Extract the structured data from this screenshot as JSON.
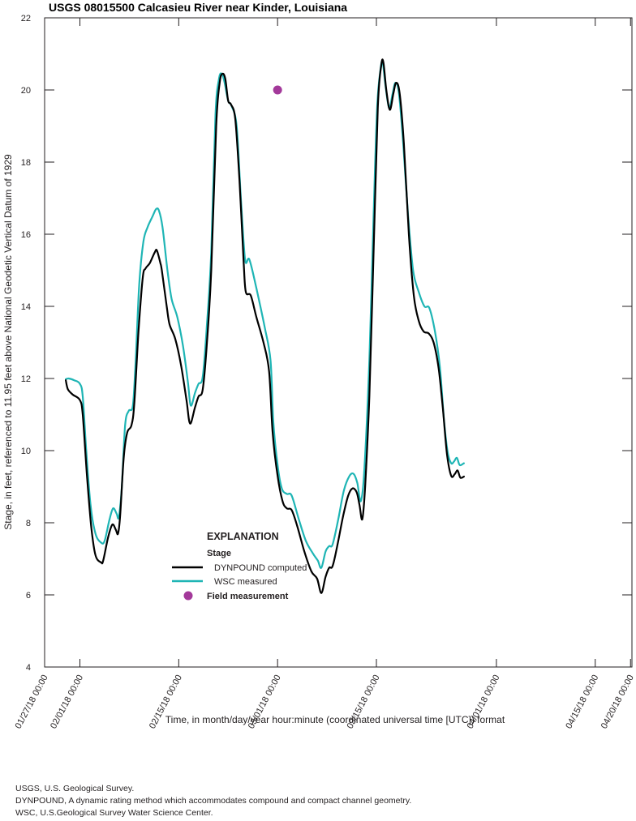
{
  "chart_data": {
    "type": "line",
    "title": "USGS 08015500 Calcasieu River near Kinder, Louisiana",
    "xlabel": "Time, in month/day/year hour:minute (coordinated universal time [UTC]) format",
    "ylabel": "Stage, in feet, referenced to 11.95 feet above National Geodetic Vertical Datum of 1929",
    "ylim": [
      4,
      22
    ],
    "yticks": [
      4,
      6,
      8,
      10,
      12,
      14,
      16,
      18,
      20,
      22
    ],
    "xlim_day_offset": [
      0,
      83.2
    ],
    "xticks": [
      {
        "label": "01/27/18 00:00",
        "day": 0
      },
      {
        "label": "02/01/18 00:00",
        "day": 5
      },
      {
        "label": "02/15/18 00:00",
        "day": 19
      },
      {
        "label": "03/01/18 00:00",
        "day": 33
      },
      {
        "label": "03/15/18 00:00",
        "day": 47
      },
      {
        "label": "04/01/18 00:00",
        "day": 64
      },
      {
        "label": "04/15/18 00:00",
        "day": 78
      },
      {
        "label": "04/20/18 00:00",
        "day": 83
      }
    ],
    "grid": false,
    "legend_position": "lower-center",
    "legend": {
      "title": "EXPLANATION",
      "group": "Stage",
      "entries": [
        {
          "label": "DYNPOUND computed",
          "type": "line",
          "color": "#000000"
        },
        {
          "label": "WSC measured",
          "type": "line",
          "color": "#1fb5b5"
        },
        {
          "label": "Field measurement",
          "type": "point",
          "color": "#a3399a"
        }
      ]
    },
    "x_unit": "days since 01/27/18 00:00",
    "series": [
      {
        "name": "DYNPOUND computed",
        "color": "#000000",
        "points": [
          [
            3.0,
            11.95
          ],
          [
            3.3,
            11.7
          ],
          [
            4.0,
            11.55
          ],
          [
            5.0,
            11.4
          ],
          [
            5.4,
            11.0
          ],
          [
            6.0,
            9.3
          ],
          [
            6.6,
            7.9
          ],
          [
            7.2,
            7.1
          ],
          [
            8.0,
            6.9
          ],
          [
            8.3,
            6.95
          ],
          [
            9.0,
            7.6
          ],
          [
            9.6,
            7.95
          ],
          [
            10.1,
            7.8
          ],
          [
            10.4,
            7.7
          ],
          [
            10.7,
            8.2
          ],
          [
            11.2,
            9.8
          ],
          [
            11.7,
            10.5
          ],
          [
            12.3,
            10.7
          ],
          [
            12.7,
            11.3
          ],
          [
            13.3,
            13.3
          ],
          [
            13.9,
            14.8
          ],
          [
            14.3,
            15.05
          ],
          [
            14.9,
            15.2
          ],
          [
            15.6,
            15.5
          ],
          [
            15.9,
            15.55
          ],
          [
            16.4,
            15.2
          ],
          [
            16.6,
            15.0
          ],
          [
            17.3,
            14.0
          ],
          [
            17.7,
            13.5
          ],
          [
            18.5,
            13.1
          ],
          [
            19.3,
            12.4
          ],
          [
            20.1,
            11.4
          ],
          [
            20.6,
            10.75
          ],
          [
            21.3,
            11.2
          ],
          [
            21.8,
            11.5
          ],
          [
            22.4,
            11.7
          ],
          [
            23.0,
            13.0
          ],
          [
            23.6,
            15.0
          ],
          [
            24.3,
            19.0
          ],
          [
            24.8,
            20.2
          ],
          [
            25.2,
            20.45
          ],
          [
            25.6,
            20.3
          ],
          [
            26.0,
            19.7
          ],
          [
            26.4,
            19.6
          ],
          [
            27.0,
            19.2
          ],
          [
            27.6,
            17.5
          ],
          [
            28.2,
            15.2
          ],
          [
            28.5,
            14.4
          ],
          [
            29.2,
            14.3
          ],
          [
            30.0,
            13.7
          ],
          [
            31.0,
            13.0
          ],
          [
            31.8,
            12.2
          ],
          [
            32.3,
            10.5
          ],
          [
            33.0,
            9.3
          ],
          [
            33.7,
            8.6
          ],
          [
            34.3,
            8.4
          ],
          [
            35.0,
            8.35
          ],
          [
            35.8,
            7.9
          ],
          [
            36.8,
            7.2
          ],
          [
            37.8,
            6.65
          ],
          [
            38.6,
            6.45
          ],
          [
            39.2,
            6.05
          ],
          [
            39.8,
            6.5
          ],
          [
            40.3,
            6.75
          ],
          [
            40.8,
            6.8
          ],
          [
            41.5,
            7.4
          ],
          [
            42.3,
            8.2
          ],
          [
            43.0,
            8.75
          ],
          [
            43.6,
            8.95
          ],
          [
            44.2,
            8.85
          ],
          [
            44.6,
            8.5
          ],
          [
            45.0,
            8.1
          ],
          [
            45.4,
            9.0
          ],
          [
            46.0,
            11.5
          ],
          [
            46.6,
            15.5
          ],
          [
            47.2,
            19.5
          ],
          [
            47.7,
            20.7
          ],
          [
            48.0,
            20.75
          ],
          [
            48.4,
            20.0
          ],
          [
            48.9,
            19.45
          ],
          [
            49.4,
            19.9
          ],
          [
            49.8,
            20.2
          ],
          [
            50.3,
            19.9
          ],
          [
            50.9,
            18.5
          ],
          [
            51.6,
            16.0
          ],
          [
            52.3,
            14.3
          ],
          [
            53.0,
            13.6
          ],
          [
            53.7,
            13.3
          ],
          [
            54.4,
            13.25
          ],
          [
            55.1,
            13.0
          ],
          [
            55.8,
            12.3
          ],
          [
            56.4,
            11.2
          ],
          [
            57.0,
            9.9
          ],
          [
            57.6,
            9.3
          ],
          [
            58.1,
            9.35
          ],
          [
            58.5,
            9.45
          ],
          [
            58.9,
            9.25
          ],
          [
            59.4,
            9.28
          ]
        ]
      },
      {
        "name": "WSC measured",
        "color": "#1fb5b5",
        "points": [
          [
            3.0,
            11.98
          ],
          [
            3.4,
            12.0
          ],
          [
            4.2,
            11.95
          ],
          [
            5.0,
            11.85
          ],
          [
            5.4,
            11.5
          ],
          [
            5.9,
            10.0
          ],
          [
            6.5,
            8.5
          ],
          [
            7.2,
            7.7
          ],
          [
            8.0,
            7.45
          ],
          [
            8.5,
            7.5
          ],
          [
            9.2,
            8.1
          ],
          [
            9.7,
            8.4
          ],
          [
            10.2,
            8.25
          ],
          [
            10.5,
            8.15
          ],
          [
            10.9,
            8.9
          ],
          [
            11.4,
            10.7
          ],
          [
            11.9,
            11.1
          ],
          [
            12.5,
            11.25
          ],
          [
            12.9,
            12.5
          ],
          [
            13.4,
            14.6
          ],
          [
            14.0,
            15.8
          ],
          [
            14.6,
            16.2
          ],
          [
            15.3,
            16.5
          ],
          [
            15.8,
            16.7
          ],
          [
            16.2,
            16.65
          ],
          [
            16.7,
            16.2
          ],
          [
            17.4,
            15.0
          ],
          [
            18.0,
            14.2
          ],
          [
            18.8,
            13.7
          ],
          [
            19.6,
            12.9
          ],
          [
            20.3,
            11.9
          ],
          [
            20.7,
            11.25
          ],
          [
            21.3,
            11.6
          ],
          [
            21.8,
            11.85
          ],
          [
            22.4,
            12.05
          ],
          [
            23.0,
            13.5
          ],
          [
            23.6,
            15.5
          ],
          [
            24.2,
            19.3
          ],
          [
            24.7,
            20.3
          ],
          [
            25.1,
            20.45
          ],
          [
            25.5,
            20.2
          ],
          [
            26.0,
            19.7
          ],
          [
            26.5,
            19.55
          ],
          [
            27.2,
            19.0
          ],
          [
            27.8,
            17.0
          ],
          [
            28.4,
            15.3
          ],
          [
            29.0,
            15.3
          ],
          [
            30.0,
            14.5
          ],
          [
            31.2,
            13.4
          ],
          [
            32.0,
            12.5
          ],
          [
            32.4,
            10.8
          ],
          [
            33.0,
            9.6
          ],
          [
            33.6,
            8.95
          ],
          [
            34.3,
            8.8
          ],
          [
            35.0,
            8.75
          ],
          [
            36.0,
            8.1
          ],
          [
            37.0,
            7.5
          ],
          [
            38.0,
            7.15
          ],
          [
            38.7,
            6.95
          ],
          [
            39.2,
            6.75
          ],
          [
            39.8,
            7.2
          ],
          [
            40.3,
            7.35
          ],
          [
            40.8,
            7.4
          ],
          [
            41.6,
            8.1
          ],
          [
            42.4,
            8.9
          ],
          [
            43.2,
            9.3
          ],
          [
            43.8,
            9.35
          ],
          [
            44.3,
            9.1
          ],
          [
            44.8,
            8.6
          ],
          [
            45.3,
            9.5
          ],
          [
            46.0,
            12.5
          ],
          [
            46.6,
            16.5
          ],
          [
            47.1,
            19.5
          ],
          [
            47.6,
            20.6
          ],
          [
            47.9,
            20.75
          ],
          [
            48.3,
            20.1
          ],
          [
            48.8,
            19.5
          ],
          [
            49.3,
            19.9
          ],
          [
            49.7,
            20.2
          ],
          [
            50.2,
            19.9
          ],
          [
            50.8,
            18.5
          ],
          [
            51.5,
            16.5
          ],
          [
            52.2,
            15.0
          ],
          [
            53.0,
            14.4
          ],
          [
            53.8,
            14.0
          ],
          [
            54.5,
            13.95
          ],
          [
            55.3,
            13.3
          ],
          [
            56.0,
            12.3
          ],
          [
            56.6,
            10.8
          ],
          [
            57.1,
            9.95
          ],
          [
            57.6,
            9.65
          ],
          [
            58.0,
            9.7
          ],
          [
            58.4,
            9.8
          ],
          [
            58.8,
            9.6
          ],
          [
            59.4,
            9.65
          ]
        ]
      }
    ],
    "field_measurements": [
      {
        "day": 33.0,
        "stage": 20.0,
        "color": "#a3399a"
      }
    ]
  },
  "footnotes": [
    "USGS, U.S. Geological Survey.",
    "DYNPOUND, A dynamic rating method which accommodates compound and compact channel geometry.",
    "WSC, U.S.Geological Survey Water Science Center."
  ]
}
